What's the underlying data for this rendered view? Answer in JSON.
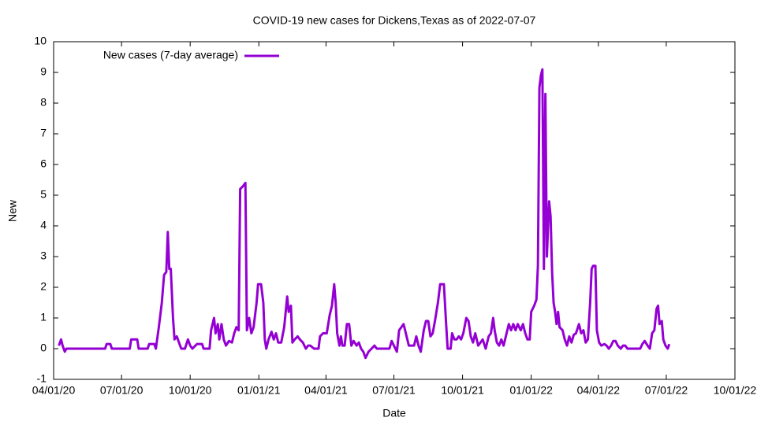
{
  "chart_data": {
    "type": "line",
    "title": "COVID-19 new cases for Dickens,Texas as of 2022-07-07",
    "xlabel": "Date",
    "ylabel": "New",
    "legend": "top left",
    "xlim": [
      "04/01/20",
      "10/01/22"
    ],
    "xticks": [
      "04/01/20",
      "07/01/20",
      "10/01/20",
      "01/01/21",
      "04/01/21",
      "07/01/21",
      "10/01/21",
      "01/01/22",
      "04/01/22",
      "07/01/22",
      "10/01/22"
    ],
    "ylim": [
      -1,
      10
    ],
    "yticks": [
      -1,
      0,
      1,
      2,
      3,
      4,
      5,
      6,
      7,
      8,
      9,
      10
    ],
    "x": [
      "04/08/20",
      "04/11/20",
      "04/13/20",
      "04/16/20",
      "04/18/20",
      "06/09/20",
      "06/11/20",
      "06/16/20",
      "06/18/20",
      "07/12/20",
      "07/14/20",
      "07/22/20",
      "07/24/20",
      "08/05/20",
      "08/07/20",
      "08/14/20",
      "08/16/20",
      "08/20/20",
      "08/24/20",
      "08/27/20",
      "08/30/20",
      "09/01/20",
      "09/03/20",
      "09/05/20",
      "09/08/20",
      "09/10/20",
      "09/13/20",
      "09/16/20",
      "09/19/20",
      "09/24/20",
      "09/28/20",
      "10/01/20",
      "10/04/20",
      "10/10/20",
      "10/17/20",
      "10/19/20",
      "10/27/20",
      "10/29/20",
      "11/02/20",
      "11/04/20",
      "11/07/20",
      "11/09/20",
      "11/12/20",
      "11/15/20",
      "11/18/20",
      "11/22/20",
      "11/26/20",
      "11/29/20",
      "12/02/20",
      "12/05/20",
      "12/07/20",
      "12/11/20",
      "12/14/20",
      "12/16/20",
      "12/19/20",
      "12/22/20",
      "12/25/20",
      "12/29/20",
      "12/31/20",
      "01/04/21",
      "01/07/21",
      "01/09/21",
      "01/11/21",
      "01/14/21",
      "01/18/21",
      "01/21/21",
      "01/24/21",
      "01/27/21",
      "01/31/21",
      "02/04/21",
      "02/08/21",
      "02/10/21",
      "02/13/21",
      "02/15/21",
      "02/18/21",
      "02/22/21",
      "02/25/21",
      "03/01/21",
      "03/05/21",
      "03/08/21",
      "03/11/21",
      "03/16/21",
      "03/22/21",
      "03/24/21",
      "03/28/21",
      "04/02/21",
      "04/06/21",
      "04/09/21",
      "04/12/21",
      "04/14/21",
      "04/16/21",
      "04/19/21",
      "04/21/21",
      "04/23/21",
      "04/26/21",
      "04/29/21",
      "05/02/21",
      "05/05/21",
      "05/08/21",
      "05/12/21",
      "05/15/21",
      "05/18/21",
      "05/21/21",
      "05/24/21",
      "05/28/21",
      "06/01/21",
      "06/05/21",
      "06/08/21",
      "06/25/21",
      "06/28/21",
      "07/01/21",
      "07/05/21",
      "07/08/21",
      "07/11/21",
      "07/14/21",
      "07/17/21",
      "07/21/21",
      "07/28/21",
      "07/31/21",
      "08/03/21",
      "08/06/21",
      "08/10/21",
      "08/13/21",
      "08/16/21",
      "08/19/21",
      "08/22/21",
      "08/25/21",
      "08/29/21",
      "09/01/21",
      "09/06/21",
      "09/09/21",
      "09/11/21",
      "09/15/21",
      "09/17/21",
      "09/20/21",
      "09/23/21",
      "09/26/21",
      "09/29/21",
      "10/02/21",
      "10/06/21",
      "10/09/21",
      "10/12/21",
      "10/15/21",
      "10/18/21",
      "10/22/21",
      "10/25/21",
      "10/28/21",
      "11/01/21",
      "11/05/21",
      "11/08/21",
      "11/11/21",
      "11/13/21",
      "11/16/21",
      "11/19/21",
      "11/22/21",
      "11/25/21",
      "11/29/21",
      "12/02/21",
      "12/05/21",
      "12/08/21",
      "12/11/21",
      "12/14/21",
      "12/18/21",
      "12/21/21",
      "12/24/21",
      "12/27/21",
      "12/30/21",
      "01/01/22",
      "01/05/22",
      "01/08/22",
      "01/10/22",
      "01/12/22",
      "01/14/22",
      "01/16/22",
      "01/18/22",
      "01/20/22",
      "01/22/22",
      "01/25/22",
      "01/27/22",
      "01/29/22",
      "01/31/22",
      "02/02/22",
      "02/04/22",
      "02/06/22",
      "02/08/22",
      "02/12/22",
      "02/15/22",
      "02/18/22",
      "02/21/22",
      "02/24/22",
      "02/27/22",
      "03/02/22",
      "03/06/22",
      "03/09/22",
      "03/12/22",
      "03/15/22",
      "03/18/22",
      "03/21/22",
      "03/23/22",
      "03/25/22",
      "03/28/22",
      "03/30/22",
      "04/02/22",
      "04/05/22",
      "04/09/22",
      "04/12/22",
      "04/15/22",
      "04/18/22",
      "04/21/22",
      "04/24/22",
      "04/27/22",
      "05/01/22",
      "05/04/22",
      "05/07/22",
      "05/10/22",
      "05/27/22",
      "05/30/22",
      "06/02/22",
      "06/06/22",
      "06/09/22",
      "06/12/22",
      "06/15/22",
      "06/18/22",
      "06/20/22",
      "06/22/22",
      "06/25/22",
      "06/27/22",
      "06/30/22",
      "07/03/22",
      "07/05/22"
    ],
    "series": [
      {
        "name": "New cases (7-day average)",
        "color": "#9400d3",
        "values": [
          0.1,
          0.3,
          0.1,
          -0.1,
          0,
          0,
          0.15,
          0.15,
          0,
          0,
          0.3,
          0.3,
          0,
          0,
          0.15,
          0.15,
          0,
          0.7,
          1.5,
          2.4,
          2.5,
          3.8,
          2.6,
          2.6,
          1,
          0.3,
          0.4,
          0.2,
          0,
          0,
          0.3,
          0.1,
          0,
          0.15,
          0.15,
          0,
          0,
          0.6,
          1,
          0.5,
          0.8,
          0.3,
          0.8,
          0.3,
          0.1,
          0.25,
          0.2,
          0.5,
          0.7,
          0.6,
          5.2,
          5.3,
          5.4,
          0.6,
          1,
          0.5,
          0.7,
          1.5,
          2.1,
          2.1,
          1.5,
          0.3,
          0,
          0.3,
          0.55,
          0.3,
          0.5,
          0.2,
          0.2,
          0.7,
          1.7,
          1.2,
          1.4,
          0.2,
          0.3,
          0.4,
          0.3,
          0.2,
          0,
          0.1,
          0.1,
          0,
          0,
          0.4,
          0.5,
          0.5,
          1.1,
          1.4,
          2.1,
          1.5,
          0.5,
          0.1,
          0.4,
          0.1,
          0.1,
          0.8,
          0.8,
          0.1,
          0.25,
          0.1,
          0.2,
          0,
          -0.1,
          -0.3,
          -0.1,
          0,
          0.1,
          0,
          0,
          0.25,
          0.1,
          -0.1,
          0.6,
          0.7,
          0.8,
          0.5,
          0.1,
          0.1,
          0.4,
          0.1,
          -0.1,
          0.6,
          0.9,
          0.9,
          0.4,
          0.5,
          0.9,
          1.5,
          2.1,
          2.1,
          0.8,
          0,
          0,
          0.5,
          0.3,
          0.3,
          0.4,
          0.3,
          0.5,
          1,
          0.9,
          0.4,
          0.2,
          0.5,
          0.1,
          0.2,
          0.3,
          0,
          0.4,
          0.5,
          1,
          0.6,
          0.2,
          0.1,
          0.3,
          0.1,
          0.5,
          0.8,
          0.6,
          0.8,
          0.6,
          0.8,
          0.6,
          0.8,
          0.5,
          0.3,
          0.3,
          1.2,
          1.4,
          1.6,
          2.7,
          8.5,
          8.9,
          9.1,
          2.6,
          8.3,
          3,
          4.8,
          4.3,
          2.5,
          1.5,
          1.2,
          0.8,
          1.2,
          0.7,
          0.6,
          0.3,
          0.1,
          0.4,
          0.2,
          0.45,
          0.5,
          0.8,
          0.5,
          0.6,
          0.2,
          0.3,
          1.5,
          2.6,
          2.7,
          2.7,
          0.6,
          0.2,
          0.1,
          0.15,
          0.1,
          0,
          0.1,
          0.25,
          0.25,
          0.1,
          0,
          0.1,
          0.1,
          0,
          0,
          0.15,
          0.25,
          0.1,
          0,
          0.5,
          0.6,
          1.3,
          1.4,
          0.8,
          0.9,
          0.3,
          0.1,
          0,
          0.15
        ]
      }
    ]
  }
}
